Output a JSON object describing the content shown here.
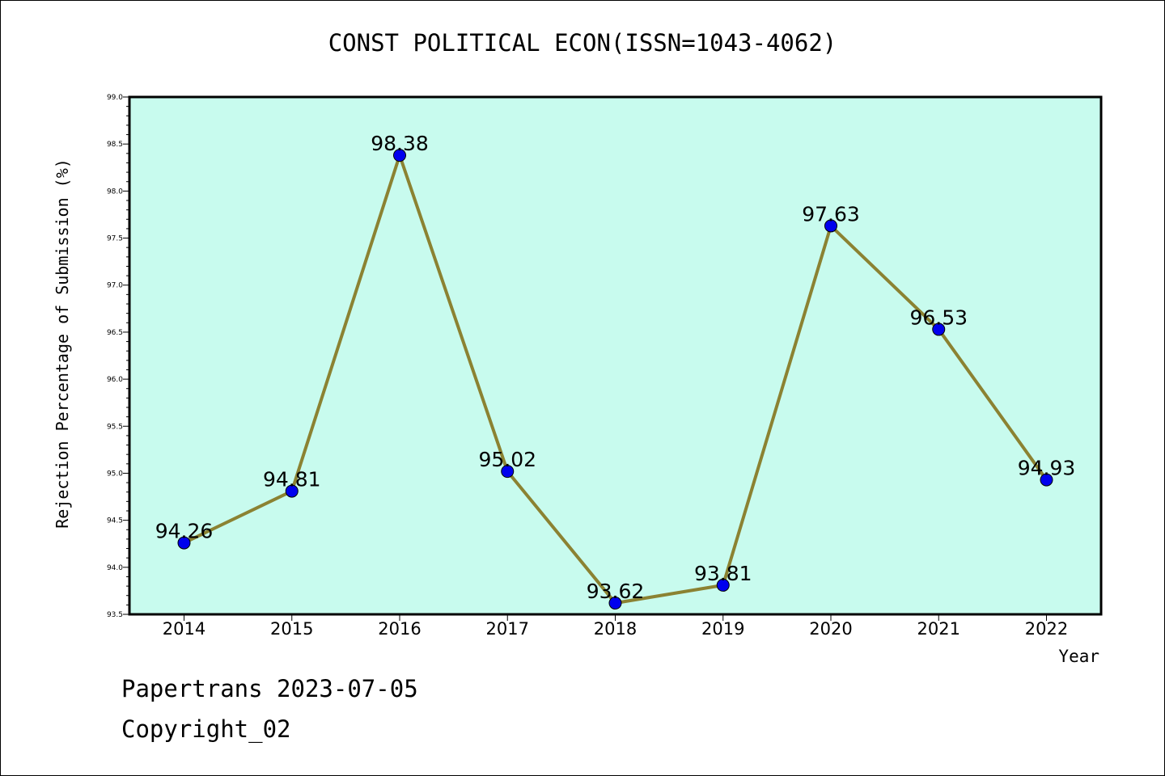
{
  "title": "CONST POLITICAL ECON(ISSN=1043-4062)",
  "footer": {
    "line1": "Papertrans 2023-07-05",
    "line2": "Copyright_02"
  },
  "colors": {
    "plot_background": "#c8fbee",
    "line": "#8b8232",
    "marker": "#0000ee"
  },
  "chart_data": {
    "type": "line",
    "title": "CONST POLITICAL ECON(ISSN=1043-4062)",
    "xlabel": "Year",
    "ylabel": "Rejection Percentage of Submission (%)",
    "categories": [
      "2014",
      "2015",
      "2016",
      "2017",
      "2018",
      "2019",
      "2020",
      "2021",
      "2022"
    ],
    "values": [
      94.26,
      94.81,
      98.38,
      95.02,
      93.62,
      93.81,
      97.63,
      96.53,
      94.93
    ],
    "data_labels": [
      "94.26",
      "94.81",
      "98.38",
      "95.02",
      "93.62",
      "93.81",
      "97.63",
      "96.53",
      "94.93"
    ],
    "ylim": [
      93.5,
      99.0
    ],
    "yticks": [
      "93.5",
      "94.0",
      "94.5",
      "95.0",
      "95.5",
      "96.0",
      "96.5",
      "97.0",
      "97.5",
      "98.0",
      "98.5",
      "99.0"
    ],
    "grid": false,
    "legend": "none"
  }
}
